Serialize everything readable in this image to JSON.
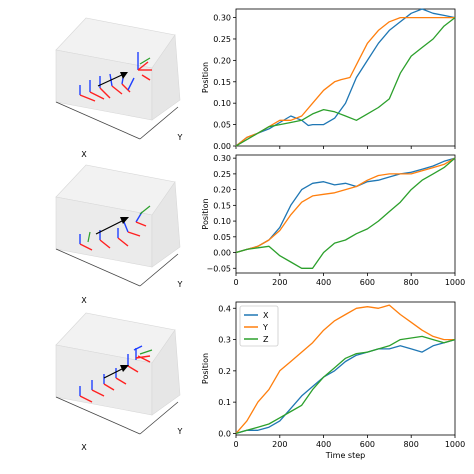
{
  "colors": {
    "X": "#1f77b4",
    "Y": "#ff7f0e",
    "Z": "#2ca02c"
  },
  "scene_3d": [
    {
      "xlabel": "X",
      "ylabel": "Y"
    },
    {
      "xlabel": "X",
      "ylabel": "Y"
    },
    {
      "xlabel": "X",
      "ylabel": "Y"
    }
  ],
  "chart_data": [
    {
      "type": "line",
      "xlabel": "",
      "ylabel": "Position",
      "xlim": [
        0,
        1000
      ],
      "ylim": [
        0,
        0.32
      ],
      "yticks": [
        "0.00",
        "0.05",
        "0.10",
        "0.15",
        "0.20",
        "0.25",
        "0.30"
      ],
      "xticks": [],
      "legend": false,
      "series": [
        {
          "key": "X",
          "points": [
            [
              0,
              0.0
            ],
            [
              50,
              0.02
            ],
            [
              100,
              0.03
            ],
            [
              150,
              0.04
            ],
            [
              200,
              0.055
            ],
            [
              250,
              0.07
            ],
            [
              300,
              0.06
            ],
            [
              330,
              0.048
            ],
            [
              350,
              0.05
            ],
            [
              400,
              0.05
            ],
            [
              450,
              0.065
            ],
            [
              500,
              0.1
            ],
            [
              550,
              0.16
            ],
            [
              600,
              0.2
            ],
            [
              650,
              0.24
            ],
            [
              700,
              0.27
            ],
            [
              750,
              0.29
            ],
            [
              800,
              0.31
            ],
            [
              850,
              0.32
            ],
            [
              900,
              0.31
            ],
            [
              950,
              0.305
            ],
            [
              1000,
              0.3
            ]
          ]
        },
        {
          "key": "Y",
          "points": [
            [
              0,
              0.0
            ],
            [
              50,
              0.02
            ],
            [
              100,
              0.03
            ],
            [
              150,
              0.045
            ],
            [
              200,
              0.06
            ],
            [
              250,
              0.06
            ],
            [
              300,
              0.07
            ],
            [
              350,
              0.1
            ],
            [
              400,
              0.13
            ],
            [
              450,
              0.15
            ],
            [
              480,
              0.155
            ],
            [
              520,
              0.16
            ],
            [
              560,
              0.2
            ],
            [
              600,
              0.24
            ],
            [
              650,
              0.27
            ],
            [
              700,
              0.29
            ],
            [
              750,
              0.3
            ],
            [
              800,
              0.3
            ],
            [
              850,
              0.3
            ],
            [
              900,
              0.3
            ],
            [
              950,
              0.3
            ],
            [
              1000,
              0.3
            ]
          ]
        },
        {
          "key": "Z",
          "points": [
            [
              0,
              0.0
            ],
            [
              50,
              0.015
            ],
            [
              100,
              0.03
            ],
            [
              150,
              0.045
            ],
            [
              200,
              0.05
            ],
            [
              250,
              0.055
            ],
            [
              300,
              0.06
            ],
            [
              350,
              0.075
            ],
            [
              400,
              0.085
            ],
            [
              450,
              0.08
            ],
            [
              500,
              0.07
            ],
            [
              550,
              0.06
            ],
            [
              600,
              0.075
            ],
            [
              650,
              0.09
            ],
            [
              700,
              0.11
            ],
            [
              750,
              0.17
            ],
            [
              800,
              0.21
            ],
            [
              850,
              0.23
            ],
            [
              900,
              0.25
            ],
            [
              950,
              0.28
            ],
            [
              1000,
              0.3
            ]
          ]
        }
      ]
    },
    {
      "type": "line",
      "xlabel": "",
      "ylabel": "Position",
      "xlim": [
        0,
        1000
      ],
      "ylim": [
        -0.065,
        0.31
      ],
      "yticks": [
        "−0.05",
        "0.00",
        "0.05",
        "0.10",
        "0.15",
        "0.20",
        "0.25",
        "0.30"
      ],
      "xticks": [
        "0",
        "200",
        "400",
        "600",
        "800",
        "1000"
      ],
      "legend": false,
      "series": [
        {
          "key": "X",
          "points": [
            [
              0,
              0.0
            ],
            [
              50,
              0.01
            ],
            [
              100,
              0.02
            ],
            [
              150,
              0.04
            ],
            [
              200,
              0.08
            ],
            [
              250,
              0.15
            ],
            [
              300,
              0.2
            ],
            [
              350,
              0.22
            ],
            [
              400,
              0.225
            ],
            [
              450,
              0.215
            ],
            [
              500,
              0.22
            ],
            [
              550,
              0.21
            ],
            [
              600,
              0.225
            ],
            [
              650,
              0.23
            ],
            [
              700,
              0.24
            ],
            [
              750,
              0.25
            ],
            [
              800,
              0.255
            ],
            [
              850,
              0.265
            ],
            [
              900,
              0.275
            ],
            [
              950,
              0.29
            ],
            [
              1000,
              0.3
            ]
          ]
        },
        {
          "key": "Y",
          "points": [
            [
              0,
              0.0
            ],
            [
              50,
              0.01
            ],
            [
              100,
              0.02
            ],
            [
              150,
              0.04
            ],
            [
              200,
              0.07
            ],
            [
              250,
              0.12
            ],
            [
              300,
              0.16
            ],
            [
              350,
              0.18
            ],
            [
              400,
              0.185
            ],
            [
              450,
              0.19
            ],
            [
              500,
              0.2
            ],
            [
              550,
              0.21
            ],
            [
              600,
              0.23
            ],
            [
              650,
              0.245
            ],
            [
              700,
              0.25
            ],
            [
              750,
              0.25
            ],
            [
              800,
              0.25
            ],
            [
              850,
              0.26
            ],
            [
              900,
              0.27
            ],
            [
              950,
              0.28
            ],
            [
              1000,
              0.3
            ]
          ]
        },
        {
          "key": "Z",
          "points": [
            [
              0,
              0.0
            ],
            [
              50,
              0.01
            ],
            [
              100,
              0.015
            ],
            [
              150,
              0.02
            ],
            [
              200,
              -0.01
            ],
            [
              250,
              -0.03
            ],
            [
              300,
              -0.05
            ],
            [
              350,
              -0.05
            ],
            [
              400,
              0.0
            ],
            [
              450,
              0.03
            ],
            [
              500,
              0.04
            ],
            [
              550,
              0.06
            ],
            [
              600,
              0.075
            ],
            [
              650,
              0.1
            ],
            [
              700,
              0.13
            ],
            [
              750,
              0.16
            ],
            [
              800,
              0.2
            ],
            [
              850,
              0.23
            ],
            [
              900,
              0.25
            ],
            [
              950,
              0.27
            ],
            [
              1000,
              0.3
            ]
          ]
        }
      ]
    },
    {
      "type": "line",
      "xlabel": "Time step",
      "ylabel": "Position",
      "xlim": [
        0,
        1000
      ],
      "ylim": [
        -0.005,
        0.42
      ],
      "yticks": [
        "0.0",
        "0.1",
        "0.2",
        "0.3",
        "0.4"
      ],
      "xticks": [
        "0",
        "200",
        "400",
        "600",
        "800",
        "1000"
      ],
      "legend": true,
      "legend_position": "top-left",
      "series": [
        {
          "key": "X",
          "name": "X",
          "points": [
            [
              0,
              0.0
            ],
            [
              50,
              0.01
            ],
            [
              100,
              0.01
            ],
            [
              150,
              0.02
            ],
            [
              200,
              0.04
            ],
            [
              250,
              0.08
            ],
            [
              300,
              0.12
            ],
            [
              350,
              0.15
            ],
            [
              400,
              0.18
            ],
            [
              450,
              0.2
            ],
            [
              500,
              0.23
            ],
            [
              550,
              0.25
            ],
            [
              600,
              0.26
            ],
            [
              650,
              0.27
            ],
            [
              700,
              0.27
            ],
            [
              750,
              0.28
            ],
            [
              800,
              0.27
            ],
            [
              850,
              0.26
            ],
            [
              900,
              0.28
            ],
            [
              950,
              0.29
            ],
            [
              1000,
              0.3
            ]
          ]
        },
        {
          "key": "Y",
          "name": "Y",
          "points": [
            [
              0,
              0.0
            ],
            [
              50,
              0.04
            ],
            [
              100,
              0.1
            ],
            [
              150,
              0.14
            ],
            [
              200,
              0.2
            ],
            [
              250,
              0.23
            ],
            [
              300,
              0.26
            ],
            [
              350,
              0.29
            ],
            [
              400,
              0.33
            ],
            [
              450,
              0.36
            ],
            [
              500,
              0.38
            ],
            [
              550,
              0.4
            ],
            [
              600,
              0.405
            ],
            [
              650,
              0.4
            ],
            [
              700,
              0.41
            ],
            [
              750,
              0.38
            ],
            [
              800,
              0.355
            ],
            [
              850,
              0.33
            ],
            [
              900,
              0.31
            ],
            [
              950,
              0.3
            ],
            [
              1000,
              0.3
            ]
          ]
        },
        {
          "key": "Z",
          "name": "Z",
          "points": [
            [
              0,
              0.0
            ],
            [
              50,
              0.01
            ],
            [
              100,
              0.02
            ],
            [
              150,
              0.03
            ],
            [
              200,
              0.05
            ],
            [
              250,
              0.07
            ],
            [
              300,
              0.09
            ],
            [
              350,
              0.14
            ],
            [
              400,
              0.18
            ],
            [
              450,
              0.21
            ],
            [
              500,
              0.24
            ],
            [
              550,
              0.255
            ],
            [
              600,
              0.26
            ],
            [
              650,
              0.27
            ],
            [
              700,
              0.28
            ],
            [
              750,
              0.3
            ],
            [
              800,
              0.305
            ],
            [
              850,
              0.31
            ],
            [
              900,
              0.3
            ],
            [
              950,
              0.29
            ],
            [
              1000,
              0.3
            ]
          ]
        }
      ]
    }
  ]
}
